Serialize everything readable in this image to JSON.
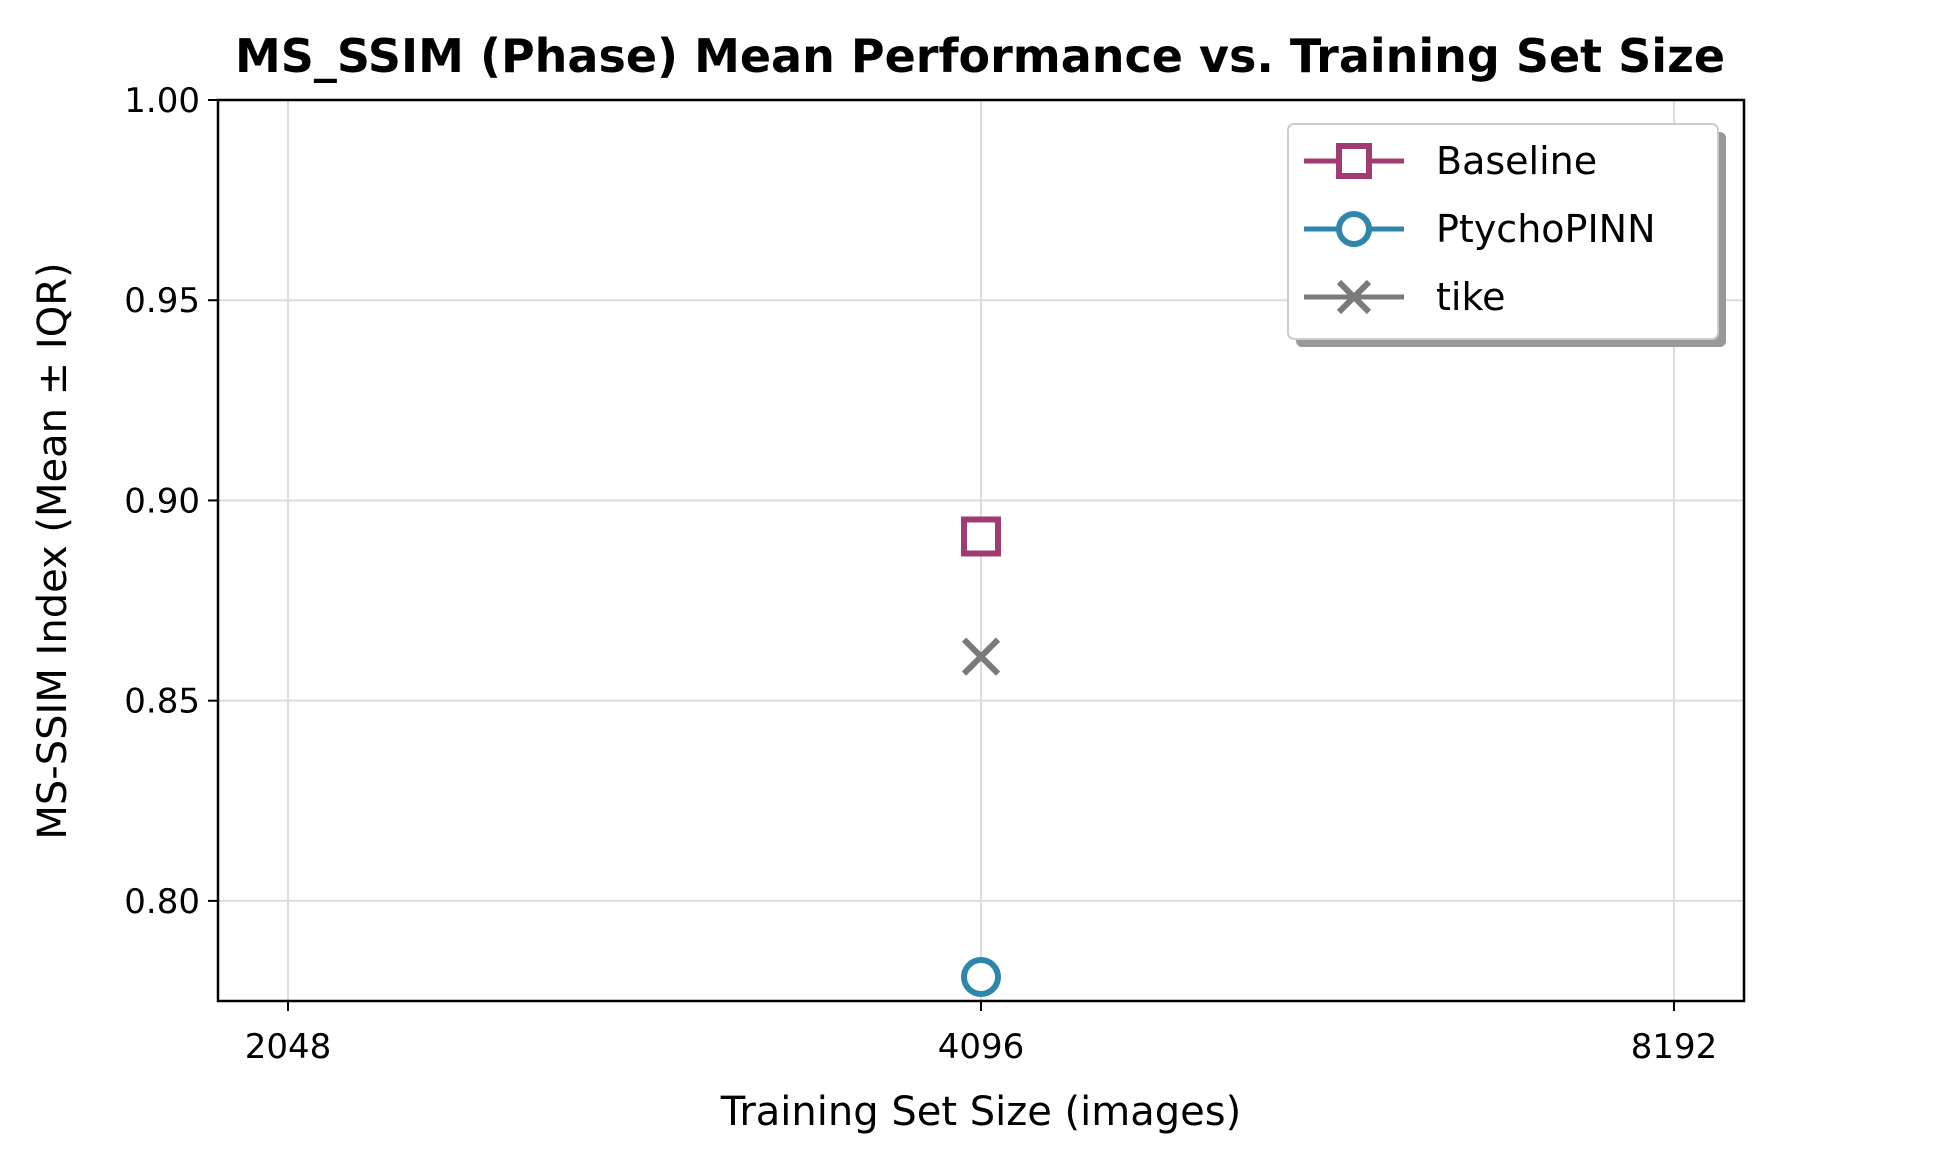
{
  "chart_data": {
    "type": "scatter",
    "title": "MS_SSIM (Phase) Mean Performance vs. Training Set Size",
    "xlabel": "Training Set Size (images)",
    "ylabel": "MS-SSIM Index (Mean ± IQR)",
    "x_scale": "log2",
    "x_ticks": [
      2048,
      4096,
      8192
    ],
    "x_tick_labels": [
      "2048",
      "4096",
      "8192"
    ],
    "xlim": [
      2048,
      8192
    ],
    "y_ticks": [
      0.8,
      0.85,
      0.9,
      0.95,
      1.0
    ],
    "y_tick_labels": [
      "0.80",
      "0.85",
      "0.90",
      "0.95",
      "1.00"
    ],
    "ylim": [
      0.775,
      1.0
    ],
    "grid": true,
    "legend_position": "top-right",
    "series": [
      {
        "name": "Baseline",
        "color": "#a23b72",
        "marker": "square",
        "x": [
          4096
        ],
        "y": [
          0.891
        ]
      },
      {
        "name": "PtychoPINN",
        "color": "#2e86ab",
        "marker": "circle",
        "x": [
          4096
        ],
        "y": [
          0.781
        ]
      },
      {
        "name": "tike",
        "color": "#7a7a7a",
        "marker": "x",
        "x": [
          4096
        ],
        "y": [
          0.861
        ]
      }
    ]
  }
}
